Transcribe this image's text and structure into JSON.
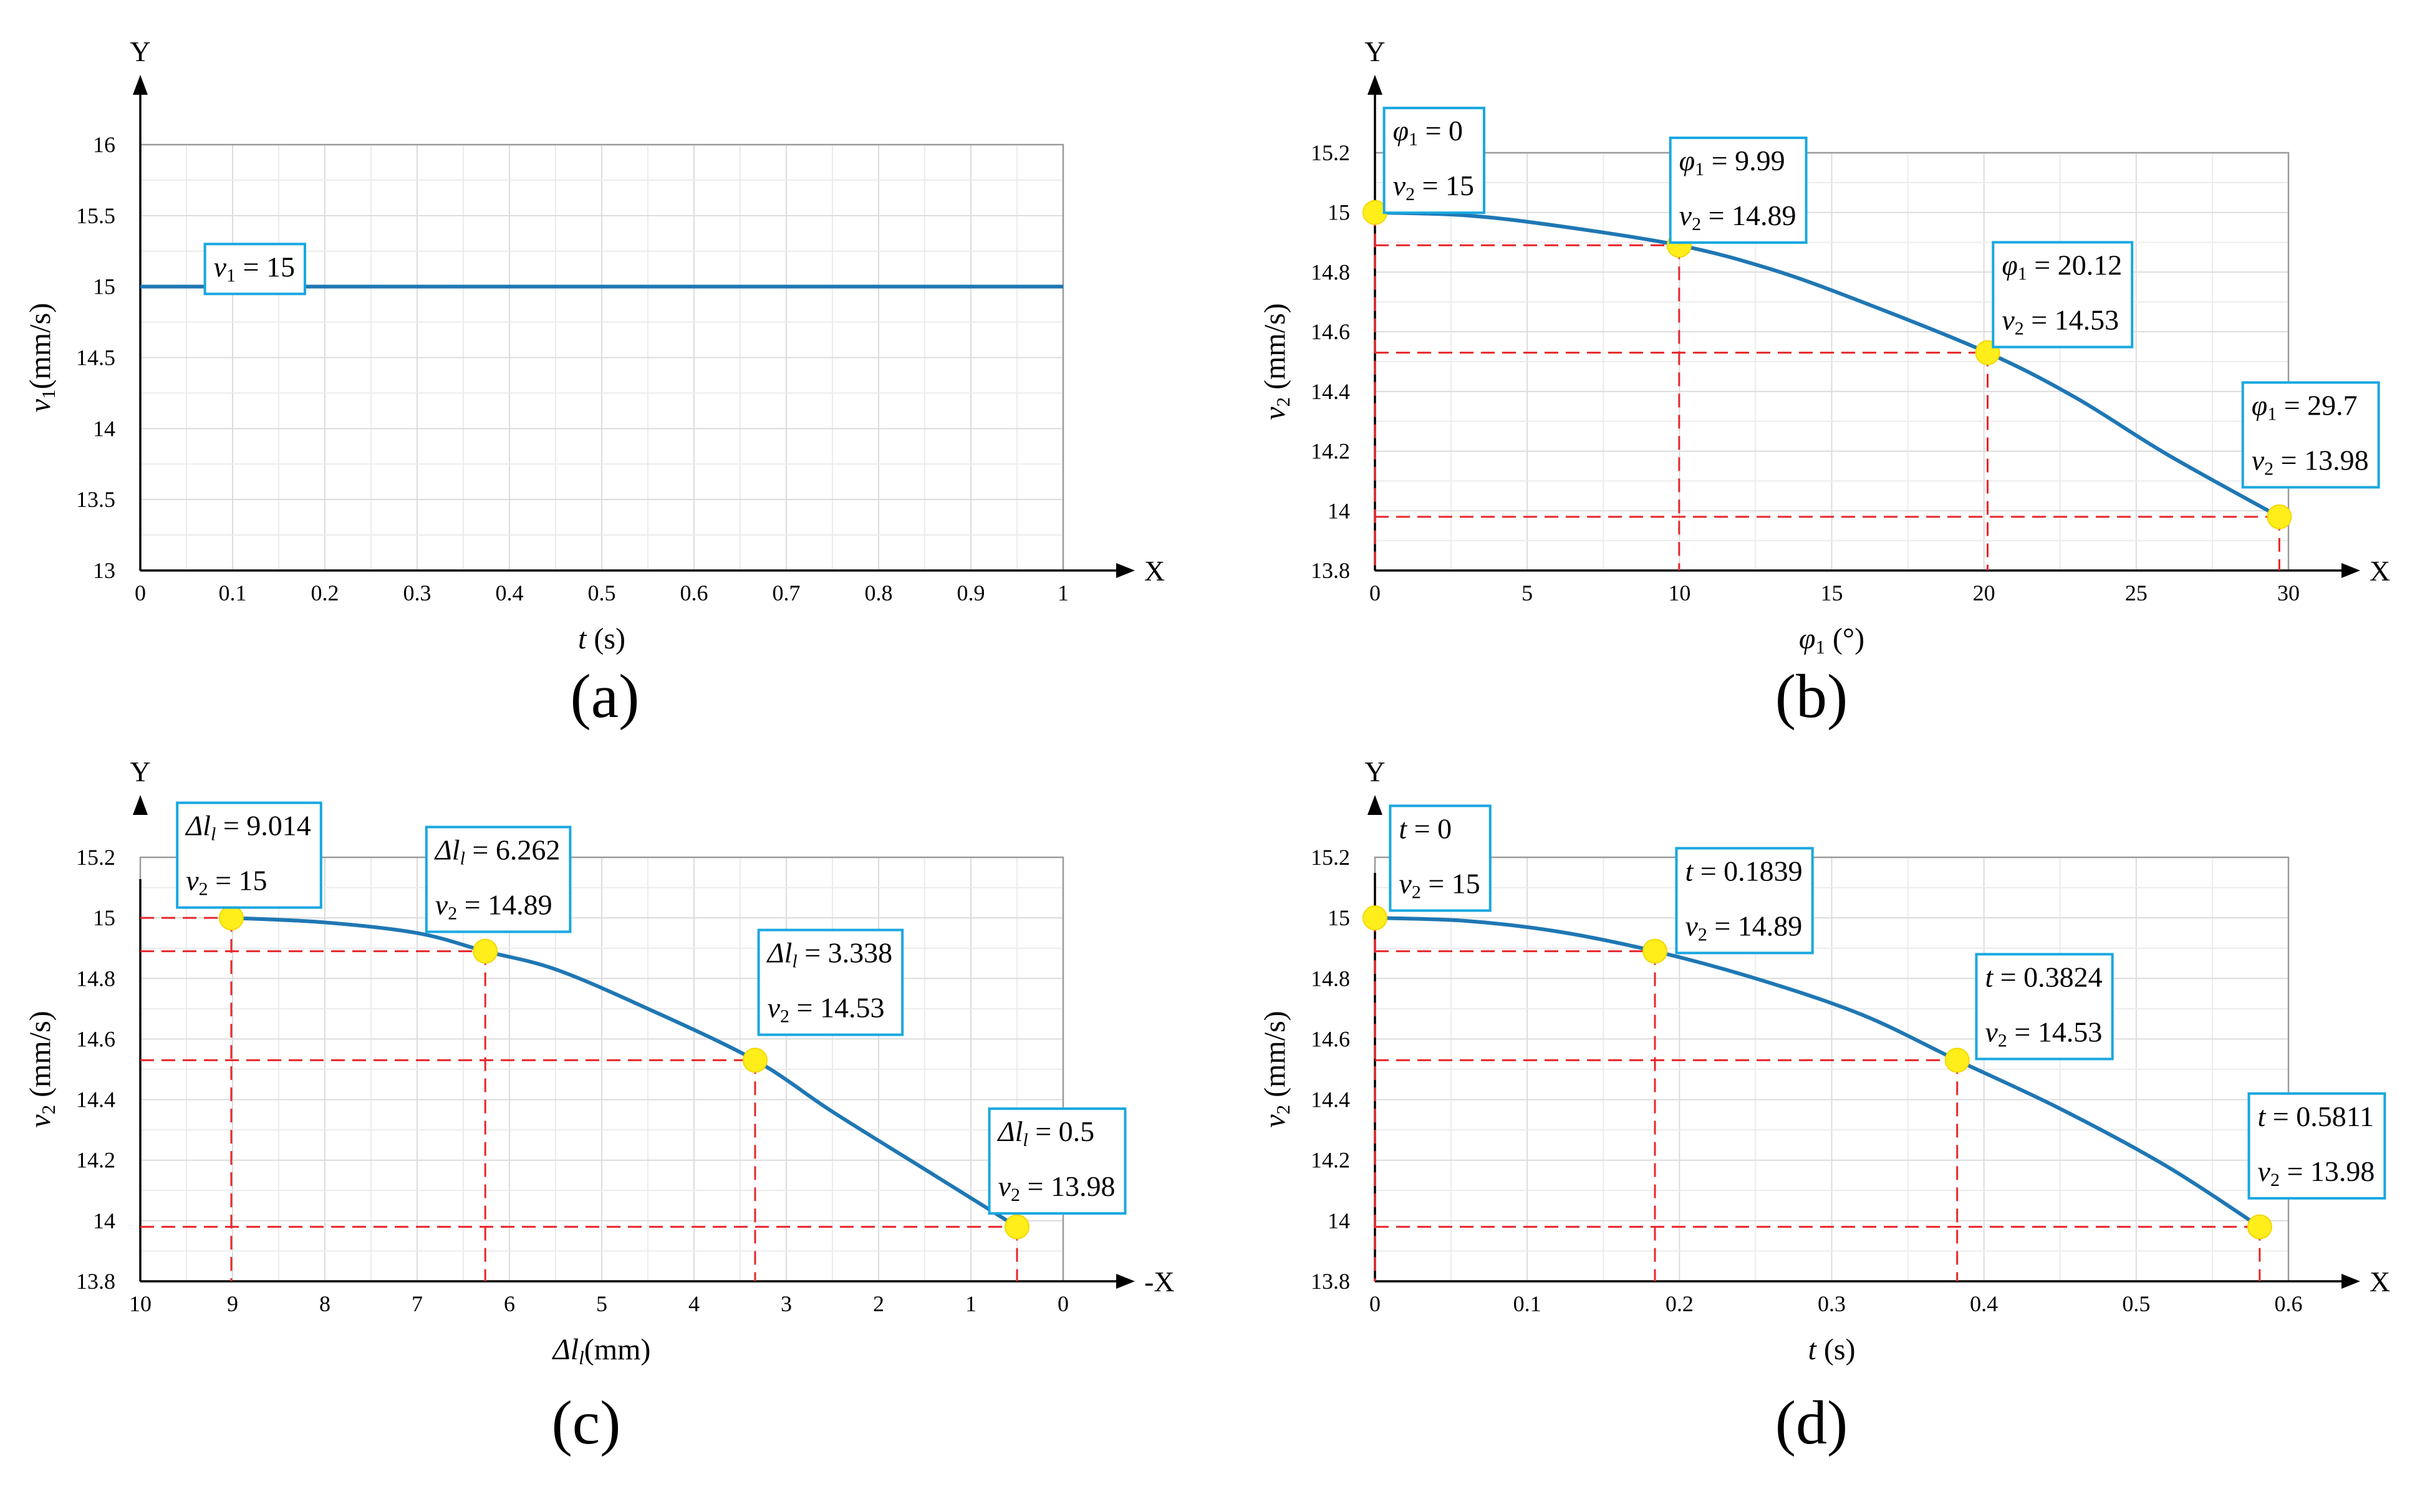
{
  "chart_data": [
    {
      "type": "line",
      "panel_label": "(a)",
      "axis_x_end": "X",
      "axis_y_end": "Y",
      "x_ticks": [
        "0",
        "0.1",
        "0.2",
        "0.3",
        "0.4",
        "0.5",
        "0.6",
        "0.7",
        "0.8",
        "0.9",
        "1"
      ],
      "y_ticks": [
        "13",
        "13.5",
        "14",
        "14.5",
        "15",
        "15.5",
        "16"
      ],
      "xlabel": {
        "sym": "t",
        "sub": "",
        "unit": " (s)"
      },
      "ylabel": {
        "sym": "v",
        "sub": "1",
        "unit": "(mm/s)"
      },
      "xlim": [
        0,
        1
      ],
      "ylim": [
        13,
        16
      ],
      "x_reversed": false,
      "grid": true,
      "series": [
        {
          "x": [
            0,
            1
          ],
          "y": [
            15,
            15
          ],
          "color": "#1f77b4"
        }
      ],
      "markers": [],
      "annotations": [
        {
          "lines": [
            {
              "sym": "v",
              "sub": "1",
              "val": " = 15"
            }
          ],
          "anchor": [
            0.07,
            15.3
          ]
        }
      ]
    },
    {
      "type": "line",
      "panel_label": "(b)",
      "axis_x_end": "X",
      "axis_y_end": "Y",
      "x_ticks": [
        "0",
        "5",
        "10",
        "15",
        "20",
        "25",
        "30"
      ],
      "y_ticks": [
        "13.8",
        "14",
        "14.2",
        "14.4",
        "14.6",
        "14.8",
        "15",
        "15.2"
      ],
      "xlabel": {
        "sym": "φ",
        "sub": "1",
        "unit": "   (°)"
      },
      "ylabel": {
        "sym": "v",
        "sub": "2",
        "unit": " (mm/s)"
      },
      "xlim": [
        0,
        30
      ],
      "ylim": [
        13.8,
        15.2
      ],
      "x_reversed": false,
      "grid": true,
      "series": [
        {
          "x": [
            0,
            3,
            6,
            9.99,
            13,
            16,
            20.12,
            23,
            26,
            29.7
          ],
          "y": [
            15,
            14.99,
            14.955,
            14.89,
            14.81,
            14.7,
            14.53,
            14.38,
            14.19,
            13.98
          ],
          "color": "#1f77b4"
        }
      ],
      "markers": [
        {
          "x": 0,
          "y": 15
        },
        {
          "x": 9.99,
          "y": 14.89
        },
        {
          "x": 20.12,
          "y": 14.53
        },
        {
          "x": 29.7,
          "y": 13.98
        }
      ],
      "annotations": [
        {
          "lines": [
            {
              "sym": "φ",
              "sub": "1",
              "val": " = 0"
            },
            {
              "sym": "v",
              "sub": "2",
              "val": " = 15"
            }
          ],
          "anchor": [
            0.3,
            15.35
          ]
        },
        {
          "lines": [
            {
              "sym": "φ",
              "sub": "1",
              "val": " = 9.99"
            },
            {
              "sym": "v",
              "sub": "2",
              "val": " = 14.89"
            }
          ],
          "anchor": [
            9.7,
            15.25
          ]
        },
        {
          "lines": [
            {
              "sym": "φ",
              "sub": "1",
              "val": " = 20.12"
            },
            {
              "sym": "v",
              "sub": "2",
              "val": " = 14.53"
            }
          ],
          "anchor": [
            20.3,
            14.9
          ]
        },
        {
          "lines": [
            {
              "sym": "φ",
              "sub": "1",
              "val": " = 29.7"
            },
            {
              "sym": "v",
              "sub": "2",
              "val": " = 13.98"
            }
          ],
          "anchor": [
            28.5,
            14.43
          ]
        }
      ]
    },
    {
      "type": "line",
      "panel_label": "(c)",
      "axis_x_end": "-X",
      "axis_y_end": "Y",
      "x_ticks": [
        "10",
        "9",
        "8",
        "7",
        "6",
        "5",
        "4",
        "3",
        "2",
        "1",
        "0"
      ],
      "y_ticks": [
        "13.8",
        "14",
        "14.2",
        "14.4",
        "14.6",
        "14.8",
        "15",
        "15.2"
      ],
      "xlabel": {
        "sym": "Δl",
        "sub": "l",
        "unit": "(mm)"
      },
      "ylabel": {
        "sym": "v",
        "sub": "2",
        "unit": " (mm/s)"
      },
      "xlim": [
        10,
        0
      ],
      "ylim": [
        13.8,
        15.2
      ],
      "x_reversed": true,
      "grid": true,
      "series": [
        {
          "x": [
            9.014,
            8,
            7,
            6.262,
            5.5,
            4.5,
            3.338,
            2.5,
            1.5,
            0.5
          ],
          "y": [
            15,
            14.985,
            14.95,
            14.89,
            14.83,
            14.7,
            14.53,
            14.36,
            14.17,
            13.98
          ],
          "color": "#1f77b4"
        }
      ],
      "markers": [
        {
          "x": 9.014,
          "y": 15
        },
        {
          "x": 6.262,
          "y": 14.89
        },
        {
          "x": 3.338,
          "y": 14.53
        },
        {
          "x": 0.5,
          "y": 13.98
        }
      ],
      "annotations": [
        {
          "lines": [
            {
              "sym": "Δl",
              "sub": "l",
              "val": " = 9.014"
            },
            {
              "sym": "v",
              "sub": "2",
              "val": " = 15"
            }
          ],
          "anchor": [
            9.6,
            15.38
          ]
        },
        {
          "lines": [
            {
              "sym": "Δl",
              "sub": "l",
              "val": " = 6.262"
            },
            {
              "sym": "v",
              "sub": "2",
              "val": " = 14.89"
            }
          ],
          "anchor": [
            6.9,
            15.3
          ]
        },
        {
          "lines": [
            {
              "sym": "Δl",
              "sub": "l",
              "val": " = 3.338"
            },
            {
              "sym": "v",
              "sub": "2",
              "val": " = 14.53"
            }
          ],
          "anchor": [
            3.3,
            14.96
          ]
        },
        {
          "lines": [
            {
              "sym": "Δl",
              "sub": "l",
              "val": " = 0.5"
            },
            {
              "sym": "v",
              "sub": "2",
              "val": " = 13.98"
            }
          ],
          "anchor": [
            0.8,
            14.37
          ]
        }
      ]
    },
    {
      "type": "line",
      "panel_label": "(d)",
      "axis_x_end": "X",
      "axis_y_end": "Y",
      "x_ticks": [
        "0",
        "0.1",
        "0.2",
        "0.3",
        "0.4",
        "0.5",
        "0.6"
      ],
      "y_ticks": [
        "13.8",
        "14",
        "14.2",
        "14.4",
        "14.6",
        "14.8",
        "15",
        "15.2"
      ],
      "xlabel": {
        "sym": "t",
        "sub": "",
        "unit": " (s)"
      },
      "ylabel": {
        "sym": "v",
        "sub": "2",
        "unit": " (mm/s)"
      },
      "xlim": [
        0,
        0.6
      ],
      "ylim": [
        13.8,
        15.2
      ],
      "x_reversed": false,
      "grid": true,
      "series": [
        {
          "x": [
            0,
            0.06,
            0.12,
            0.1839,
            0.25,
            0.32,
            0.3824,
            0.45,
            0.52,
            0.5811
          ],
          "y": [
            15,
            14.99,
            14.955,
            14.89,
            14.8,
            14.68,
            14.53,
            14.37,
            14.18,
            13.98
          ],
          "color": "#1f77b4"
        }
      ],
      "markers": [
        {
          "x": 0,
          "y": 15
        },
        {
          "x": 0.1839,
          "y": 14.89
        },
        {
          "x": 0.3824,
          "y": 14.53
        },
        {
          "x": 0.5811,
          "y": 13.98
        }
      ],
      "annotations": [
        {
          "lines": [
            {
              "sym": "t",
              "sub": "",
              "val": " = 0"
            },
            {
              "sym": "v",
              "sub": "2",
              "val": " = 15"
            }
          ],
          "anchor": [
            0.01,
            15.37
          ]
        },
        {
          "lines": [
            {
              "sym": "t",
              "sub": "",
              "val": " = 0.1839"
            },
            {
              "sym": "v",
              "sub": "2",
              "val": " = 14.89"
            }
          ],
          "anchor": [
            0.198,
            15.23
          ]
        },
        {
          "lines": [
            {
              "sym": "t",
              "sub": "",
              "val": " = 0.3824"
            },
            {
              "sym": "v",
              "sub": "2",
              "val": " = 14.53"
            }
          ],
          "anchor": [
            0.395,
            14.88
          ]
        },
        {
          "lines": [
            {
              "sym": "t",
              "sub": "",
              "val": " = 0.5811"
            },
            {
              "sym": "v",
              "sub": "2",
              "val": " = 13.98"
            }
          ],
          "anchor": [
            0.574,
            14.42
          ]
        }
      ]
    }
  ]
}
